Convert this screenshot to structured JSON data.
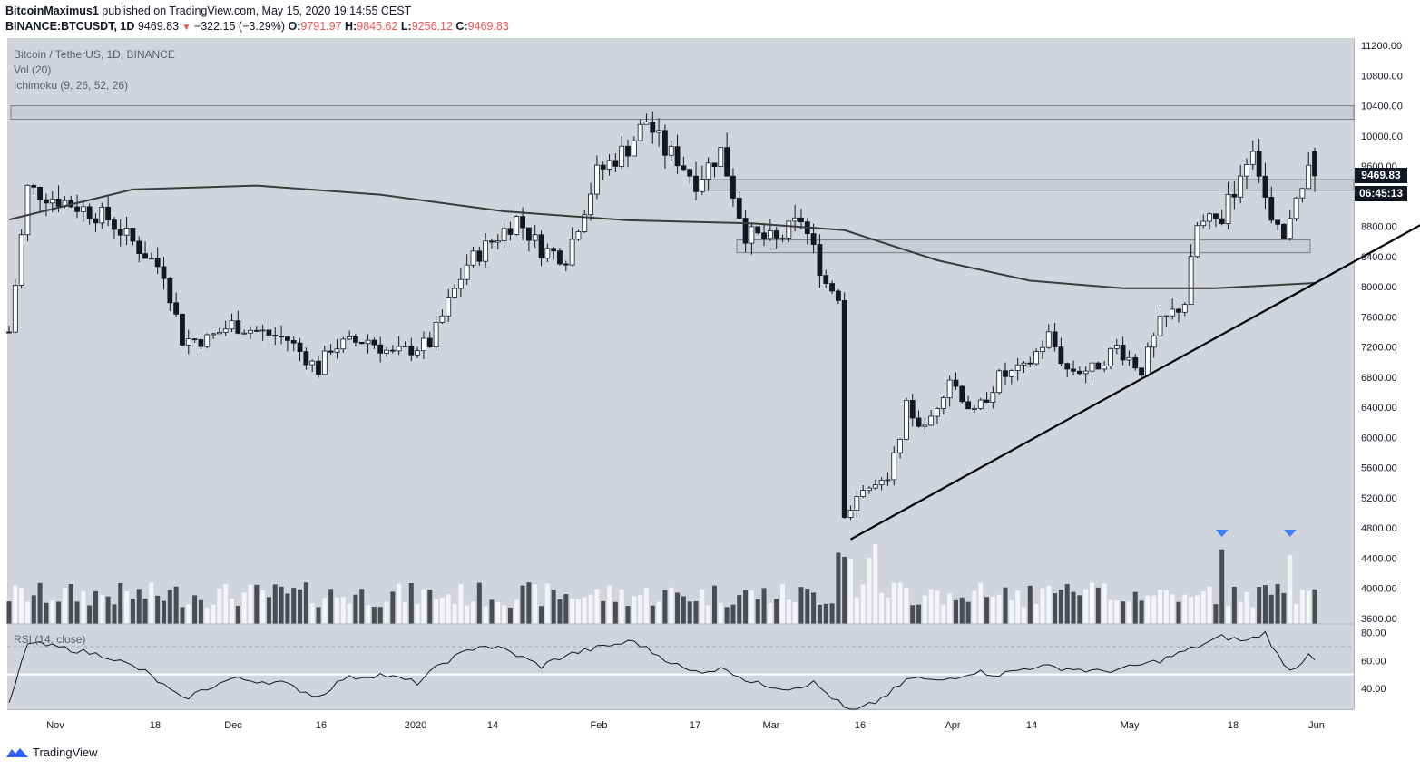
{
  "header": {
    "author": "BitcoinMaximus1",
    "published_text": " published on TradingView.com, May 15, 2020 19:14:55 CEST",
    "symbol": "BINANCE:BTCUSDT, 1D",
    "last": "9469.83",
    "change": "−322.15 (−3.29%)",
    "o_label": "O:",
    "o": "9791.97",
    "h_label": "H:",
    "h": "9845.62",
    "l_label": "L:",
    "l": "9256.12",
    "c_label": "C:",
    "c": "9469.83"
  },
  "legend": {
    "title": "Bitcoin / TetherUS, 1D, BINANCE",
    "vol": "Vol (20)",
    "ichimoku": "Ichimoku (9, 26, 52, 26)",
    "rsi": "RSI (14, close)"
  },
  "price_tag": {
    "price": "9469.83",
    "countdown": "06:45:13"
  },
  "footer": {
    "brand": "TradingView"
  },
  "colors": {
    "background": "#d1d4dc",
    "up": "#ffffff",
    "down": "#131722",
    "ma": "#3c3c3c",
    "marker": "#2962ff"
  },
  "chart_data": {
    "type": "candlestick",
    "price_range": [
      3600,
      11200
    ],
    "price_ticks": [
      3600,
      4000,
      4400,
      4800,
      5200,
      5600,
      6000,
      6400,
      6800,
      7200,
      7600,
      8000,
      8400,
      8800,
      9200,
      9600,
      10000,
      10400,
      10800,
      11200
    ],
    "time_ticks": [
      "Nov",
      "18",
      "Dec",
      "16",
      "2020",
      "14",
      "Feb",
      "17",
      "Mar",
      "16",
      "Apr",
      "14",
      "May",
      "18",
      "Jun"
    ],
    "rsi_ticks": [
      40,
      60,
      80
    ],
    "rsi_range": [
      25,
      85
    ],
    "resistance_zones": [
      [
        10220,
        10400
      ],
      [
        9280,
        9420
      ],
      [
        8450,
        8620
      ]
    ],
    "anchors": [
      {
        "t": 0,
        "c": 7400
      },
      {
        "t": 3,
        "c": 9300
      },
      {
        "t": 10,
        "c": 9100
      },
      {
        "t": 16,
        "c": 8900
      },
      {
        "t": 25,
        "c": 8200
      },
      {
        "t": 28,
        "c": 7300
      },
      {
        "t": 32,
        "c": 7300
      },
      {
        "t": 36,
        "c": 7500
      },
      {
        "t": 45,
        "c": 7300
      },
      {
        "t": 50,
        "c": 6900
      },
      {
        "t": 52,
        "c": 7200
      },
      {
        "t": 58,
        "c": 7300
      },
      {
        "t": 62,
        "c": 7100
      },
      {
        "t": 68,
        "c": 7250
      },
      {
        "t": 74,
        "c": 8300
      },
      {
        "t": 78,
        "c": 8600
      },
      {
        "t": 82,
        "c": 8900
      },
      {
        "t": 86,
        "c": 8500
      },
      {
        "t": 90,
        "c": 8400
      },
      {
        "t": 95,
        "c": 9500
      },
      {
        "t": 100,
        "c": 9850
      },
      {
        "t": 103,
        "c": 10200
      },
      {
        "t": 106,
        "c": 9800
      },
      {
        "t": 108,
        "c": 9700
      },
      {
        "t": 111,
        "c": 9400
      },
      {
        "t": 115,
        "c": 9800
      },
      {
        "t": 119,
        "c": 8700
      },
      {
        "t": 124,
        "c": 8600
      },
      {
        "t": 128,
        "c": 8900
      },
      {
        "t": 132,
        "c": 8050
      },
      {
        "t": 134,
        "c": 7900
      },
      {
        "t": 135,
        "c": 5000
      },
      {
        "t": 138,
        "c": 5300
      },
      {
        "t": 142,
        "c": 5400
      },
      {
        "t": 145,
        "c": 6400
      },
      {
        "t": 148,
        "c": 6100
      },
      {
        "t": 152,
        "c": 6800
      },
      {
        "t": 156,
        "c": 6300
      },
      {
        "t": 160,
        "c": 6800
      },
      {
        "t": 164,
        "c": 6900
      },
      {
        "t": 168,
        "c": 7350
      },
      {
        "t": 171,
        "c": 6900
      },
      {
        "t": 175,
        "c": 6900
      },
      {
        "t": 179,
        "c": 7200
      },
      {
        "t": 183,
        "c": 6900
      },
      {
        "t": 186,
        "c": 7500
      },
      {
        "t": 190,
        "c": 7800
      },
      {
        "t": 192,
        "c": 8800
      },
      {
        "t": 196,
        "c": 8900
      },
      {
        "t": 199,
        "c": 9500
      },
      {
        "t": 201,
        "c": 9900
      },
      {
        "t": 204,
        "c": 8800
      },
      {
        "t": 206,
        "c": 8600
      },
      {
        "t": 209,
        "c": 9300
      },
      {
        "t": 210,
        "c": 9750
      },
      {
        "t": 211,
        "c": 9470
      }
    ],
    "ma_line": [
      {
        "t": 0,
        "v": 8890
      },
      {
        "t": 20,
        "v": 9290
      },
      {
        "t": 40,
        "v": 9340
      },
      {
        "t": 60,
        "v": 9220
      },
      {
        "t": 80,
        "v": 9000
      },
      {
        "t": 100,
        "v": 8880
      },
      {
        "t": 120,
        "v": 8840
      },
      {
        "t": 135,
        "v": 8750
      },
      {
        "t": 150,
        "v": 8350
      },
      {
        "t": 165,
        "v": 8080
      },
      {
        "t": 180,
        "v": 7980
      },
      {
        "t": 195,
        "v": 7980
      },
      {
        "t": 211,
        "v": 8050
      }
    ],
    "trendline": {
      "start": {
        "t": 136,
        "v": 4650
      },
      "end": {
        "t": 229,
        "v": 8860
      }
    },
    "volume_spikes": [
      134,
      135,
      136,
      139,
      140,
      196,
      207
    ],
    "volume_markers": [
      196,
      207
    ],
    "rsi_anchors": [
      {
        "t": 0,
        "v": 28
      },
      {
        "t": 3,
        "v": 73
      },
      {
        "t": 10,
        "v": 68
      },
      {
        "t": 16,
        "v": 63
      },
      {
        "t": 22,
        "v": 52
      },
      {
        "t": 28,
        "v": 32
      },
      {
        "t": 32,
        "v": 40
      },
      {
        "t": 36,
        "v": 47
      },
      {
        "t": 44,
        "v": 44
      },
      {
        "t": 50,
        "v": 34
      },
      {
        "t": 54,
        "v": 47
      },
      {
        "t": 60,
        "v": 50
      },
      {
        "t": 66,
        "v": 44
      },
      {
        "t": 70,
        "v": 58
      },
      {
        "t": 76,
        "v": 71
      },
      {
        "t": 80,
        "v": 68
      },
      {
        "t": 86,
        "v": 56
      },
      {
        "t": 90,
        "v": 64
      },
      {
        "t": 96,
        "v": 70
      },
      {
        "t": 101,
        "v": 74
      },
      {
        "t": 104,
        "v": 66
      },
      {
        "t": 110,
        "v": 52
      },
      {
        "t": 116,
        "v": 54
      },
      {
        "t": 120,
        "v": 44
      },
      {
        "t": 126,
        "v": 40
      },
      {
        "t": 130,
        "v": 44
      },
      {
        "t": 134,
        "v": 30
      },
      {
        "t": 136,
        "v": 22
      },
      {
        "t": 140,
        "v": 30
      },
      {
        "t": 146,
        "v": 48
      },
      {
        "t": 150,
        "v": 45
      },
      {
        "t": 156,
        "v": 52
      },
      {
        "t": 160,
        "v": 50
      },
      {
        "t": 166,
        "v": 56
      },
      {
        "t": 172,
        "v": 54
      },
      {
        "t": 176,
        "v": 52
      },
      {
        "t": 180,
        "v": 54
      },
      {
        "t": 186,
        "v": 60
      },
      {
        "t": 192,
        "v": 70
      },
      {
        "t": 196,
        "v": 77
      },
      {
        "t": 200,
        "v": 74
      },
      {
        "t": 203,
        "v": 80
      },
      {
        "t": 206,
        "v": 56
      },
      {
        "t": 208,
        "v": 54
      },
      {
        "t": 210,
        "v": 66
      },
      {
        "t": 211,
        "v": 62
      }
    ],
    "rsi_band_level": 50
  }
}
